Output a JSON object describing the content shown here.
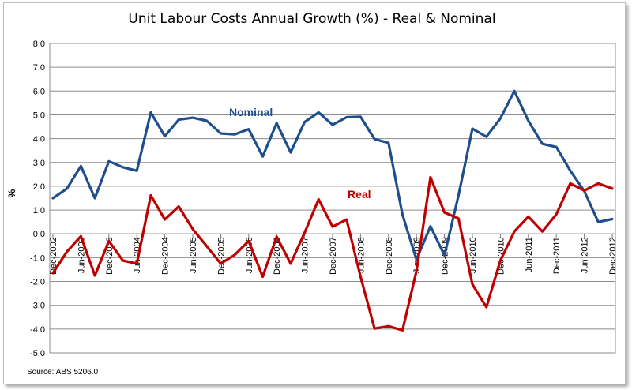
{
  "chart_data": {
    "type": "line",
    "title": "Unit Labour Costs Annual Growth (%) - Real & Nominal",
    "xlabel": "",
    "ylabel": "%",
    "source": "Source: ABS 5206.0",
    "ylim": [
      -5,
      8
    ],
    "yticks": [
      "8.0",
      "7.0",
      "6.0",
      "5.0",
      "4.0",
      "3.0",
      "2.0",
      "1.0",
      "0.0",
      "-1.0",
      "-2.0",
      "-3.0",
      "-4.0",
      "-5.0"
    ],
    "grid": "horizontal",
    "x_tick_labels": [
      "Dec-2002",
      "Jun-2003",
      "Dec-2003",
      "Jun-2004",
      "Dec-2004",
      "Jun-2005",
      "Dec-2005",
      "Jun-2006",
      "Dec-2006",
      "Jun-2007",
      "Dec-2007",
      "Jun-2008",
      "Dec-2008",
      "Jun-2009",
      "Dec-2009",
      "Jun-2010",
      "Dec-2010",
      "Jun-2011",
      "Dec-2011",
      "Jun-2012",
      "Dec-2012"
    ],
    "x": [
      "Dec-2002",
      "Mar-2003",
      "Jun-2003",
      "Sep-2003",
      "Dec-2003",
      "Mar-2004",
      "Jun-2004",
      "Sep-2004",
      "Dec-2004",
      "Mar-2005",
      "Jun-2005",
      "Sep-2005",
      "Dec-2005",
      "Mar-2006",
      "Jun-2006",
      "Sep-2006",
      "Dec-2006",
      "Mar-2007",
      "Jun-2007",
      "Sep-2007",
      "Dec-2007",
      "Mar-2008",
      "Jun-2008",
      "Sep-2008",
      "Dec-2008",
      "Mar-2009",
      "Jun-2009",
      "Sep-2009",
      "Dec-2009",
      "Mar-2010",
      "Jun-2010",
      "Sep-2010",
      "Dec-2010",
      "Mar-2011",
      "Jun-2011",
      "Sep-2011",
      "Dec-2011",
      "Mar-2012",
      "Jun-2012",
      "Sep-2012",
      "Dec-2012"
    ],
    "series": [
      {
        "name": "Nominal",
        "color": "#1f4e8c",
        "values": [
          1.5,
          1.9,
          2.85,
          1.5,
          3.05,
          2.8,
          2.65,
          5.1,
          4.1,
          4.8,
          4.88,
          4.75,
          4.22,
          4.18,
          4.4,
          3.25,
          4.65,
          3.42,
          4.7,
          5.1,
          4.58,
          4.9,
          4.92,
          3.98,
          3.82,
          0.8,
          -1.08,
          0.32,
          -0.9,
          1.6,
          4.42,
          4.08,
          4.85,
          6.0,
          4.75,
          3.78,
          3.65,
          2.65,
          1.8,
          0.5,
          0.62
        ]
      },
      {
        "name": "Real",
        "color": "#c00000",
        "values": [
          -1.65,
          -0.75,
          -0.1,
          -1.75,
          -0.3,
          -1.12,
          -1.25,
          1.62,
          0.6,
          1.15,
          0.2,
          -0.52,
          -1.25,
          -0.88,
          -0.3,
          -1.8,
          -0.12,
          -1.25,
          0.05,
          1.45,
          0.3,
          0.6,
          -1.8,
          -3.98,
          -3.88,
          -4.05,
          -1.55,
          2.38,
          0.9,
          0.65,
          -2.12,
          -3.08,
          -1.12,
          0.1,
          0.72,
          0.1,
          0.82,
          2.12,
          1.82,
          2.12,
          1.9
        ]
      }
    ]
  }
}
